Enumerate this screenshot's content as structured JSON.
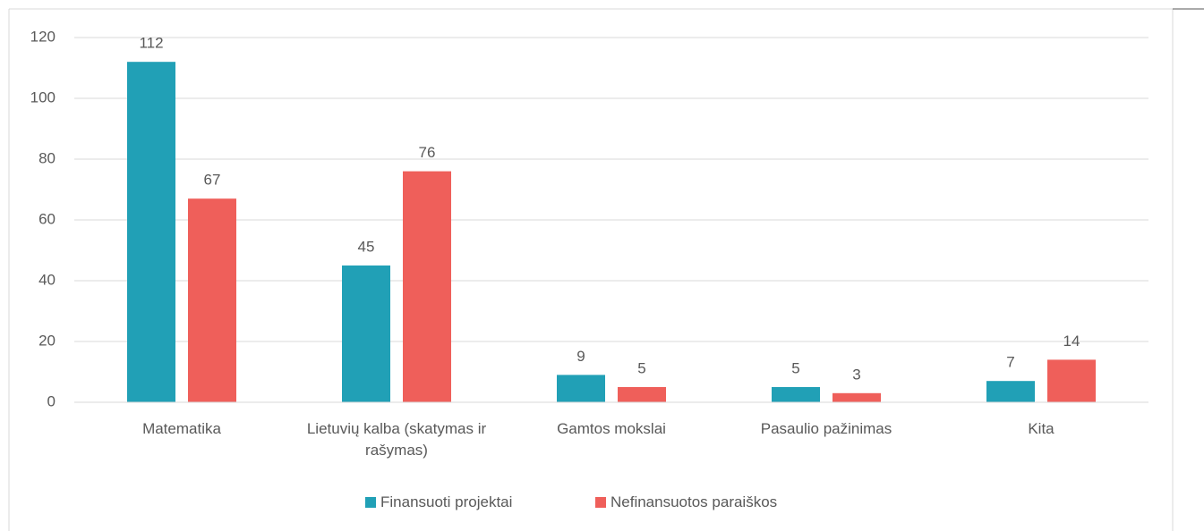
{
  "chart_data": {
    "type": "bar",
    "categories": [
      "Matematika",
      "Lietuvių kalba (skatymas ir rašymas)",
      "Gamtos mokslai",
      "Pasaulio pažinimas",
      "Kita"
    ],
    "series": [
      {
        "name": "Finansuoti projektai",
        "color": "#21a0b6",
        "values": [
          112,
          45,
          9,
          5,
          7
        ]
      },
      {
        "name": "Nefinansuotos paraiškos",
        "color": "#ef5f5a",
        "values": [
          67,
          76,
          5,
          3,
          14
        ]
      }
    ],
    "ylim": [
      0,
      120
    ],
    "yticks": [
      0,
      20,
      40,
      60,
      80,
      100,
      120
    ],
    "grid": true,
    "legend": "bottom"
  }
}
